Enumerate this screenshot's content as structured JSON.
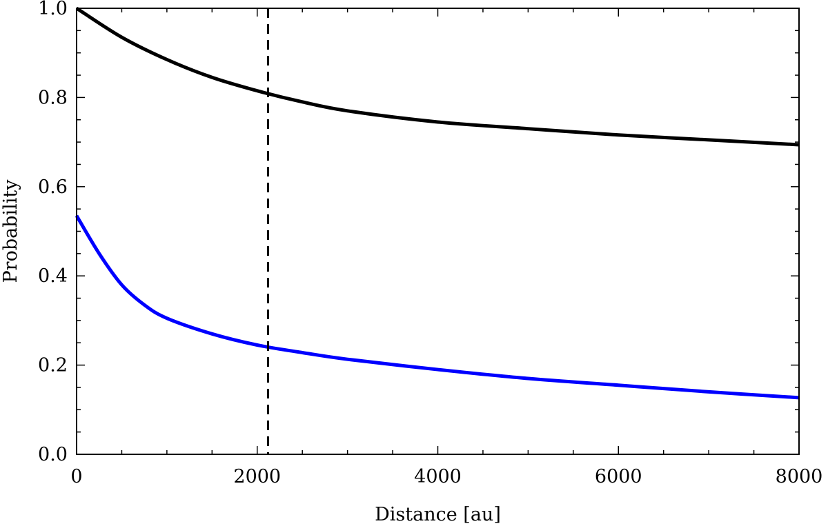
{
  "chart_data": {
    "type": "line",
    "xlabel": "Distance [au]",
    "ylabel": "Probability",
    "xlim": [
      0,
      8000
    ],
    "ylim": [
      0.0,
      1.0
    ],
    "x_ticks": [
      0,
      2000,
      4000,
      6000,
      8000
    ],
    "x_tick_labels": [
      "0",
      "2000",
      "4000",
      "6000",
      "8000"
    ],
    "y_ticks": [
      0.0,
      0.2,
      0.4,
      0.6,
      0.8,
      1.0
    ],
    "y_tick_labels": [
      "0.0",
      "0.2",
      "0.4",
      "0.6",
      "0.8",
      "1.0"
    ],
    "grid": false,
    "series": [
      {
        "color": "#000000",
        "x": [
          0,
          500,
          1000,
          1500,
          2000,
          2500,
          3000,
          4000,
          5000,
          6000,
          7000,
          8000
        ],
        "y": [
          1.0,
          0.935,
          0.885,
          0.845,
          0.815,
          0.79,
          0.77,
          0.745,
          0.73,
          0.716,
          0.705,
          0.694
        ]
      },
      {
        "color": "#0000ff",
        "x": [
          0,
          250,
          500,
          750,
          1000,
          1500,
          2000,
          2500,
          3000,
          4000,
          5000,
          6000,
          7000,
          8000
        ],
        "y": [
          0.535,
          0.45,
          0.38,
          0.335,
          0.305,
          0.27,
          0.245,
          0.228,
          0.213,
          0.19,
          0.17,
          0.155,
          0.14,
          0.127
        ]
      }
    ],
    "vlines": [
      {
        "x": 2120,
        "style": "dashed",
        "color": "#000000"
      }
    ]
  }
}
